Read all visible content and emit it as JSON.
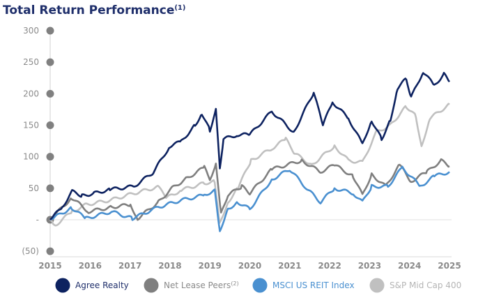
{
  "chart_data": {
    "type": "line",
    "title": "Total Return Performance",
    "title_footnote": "(1)",
    "xlabel": "",
    "ylabel": "",
    "xlim": [
      2015,
      2025
    ],
    "ylim": [
      -50,
      300
    ],
    "x_ticks": [
      "2015",
      "2016",
      "2017",
      "2018",
      "2019",
      "2020",
      "2021",
      "2022",
      "2023",
      "2024",
      "2025"
    ],
    "y_ticks": [
      {
        "value": 300,
        "label": "300"
      },
      {
        "value": 250,
        "label": "250"
      },
      {
        "value": 200,
        "label": "200"
      },
      {
        "value": 150,
        "label": "150"
      },
      {
        "value": 100,
        "label": "100"
      },
      {
        "value": 50,
        "label": "50"
      },
      {
        "value": 0,
        "label": "-"
      },
      {
        "value": -50,
        "label": "(50)"
      }
    ],
    "grid": false,
    "legend_placement": "bottom",
    "series": [
      {
        "name": "S&P Mid Cap 400",
        "color": "#c0c0c0",
        "x": [
          2015,
          2015.14,
          2015.55,
          2015.9,
          2016.5,
          2017.1,
          2017.7,
          2017.93,
          2018.28,
          2018.86,
          2019.12,
          2019.24,
          2019.45,
          2019.7,
          2020.03,
          2020.55,
          2020.9,
          2021.13,
          2021.55,
          2022.12,
          2022.47,
          2022.82,
          2023.17,
          2023.52,
          2023.92,
          2024.16,
          2024.3,
          2024.51,
          2025
        ],
        "y": [
          0,
          -8,
          13,
          24,
          31,
          42,
          52,
          35,
          47,
          58,
          61,
          -6,
          28,
          50,
          94,
          113,
          128,
          105,
          87,
          117,
          94,
          91,
          139,
          150,
          180,
          164,
          117,
          161,
          183
        ]
      },
      {
        "name": "Net Lease Peers",
        "footnote": "(2)",
        "color": "#7f7f7f",
        "x": [
          2015,
          2015.54,
          2015.96,
          2016.54,
          2017.01,
          2017.19,
          2017.71,
          2018.05,
          2018.4,
          2018.86,
          2019.0,
          2019.15,
          2019.28,
          2019.45,
          2019.8,
          2020.0,
          2020.55,
          2021.3,
          2021.77,
          2022.12,
          2022.59,
          2022.82,
          2023.05,
          2023.4,
          2023.75,
          2024.04,
          2024.44,
          2024.79,
          2025
        ],
        "y": [
          0,
          35,
          13,
          20,
          24,
          2,
          28,
          50,
          65,
          83,
          65,
          87,
          9,
          39,
          53,
          42,
          80,
          94,
          76,
          87,
          69,
          39,
          72,
          53,
          87,
          61,
          76,
          94,
          85
        ]
      },
      {
        "name": "MSCI US REIT Index",
        "color": "#4a90d0",
        "x": [
          2015,
          2015.54,
          2015.89,
          2016.54,
          2017.06,
          2017.71,
          2018.28,
          2018.86,
          2019.12,
          2019.25,
          2019.45,
          2019.7,
          2020.0,
          2020.55,
          2021.0,
          2021.42,
          2021.77,
          2022.12,
          2022.59,
          2022.82,
          2023.05,
          2023.46,
          2023.82,
          2024.27,
          2024.62,
          2025
        ],
        "y": [
          0,
          19,
          2,
          13,
          2,
          20,
          31,
          39,
          47,
          -17,
          17,
          28,
          17,
          64,
          80,
          50,
          28,
          50,
          42,
          28,
          53,
          53,
          83,
          53,
          69,
          76
        ]
      },
      {
        "name": "Agree Realty",
        "color": "#0d2260",
        "x": [
          2015,
          2015.3,
          2015.55,
          2015.8,
          2016.1,
          2016.5,
          2017.1,
          2017.58,
          2018.0,
          2018.28,
          2018.63,
          2018.8,
          2019.0,
          2019.15,
          2019.25,
          2019.34,
          2019.7,
          2020.0,
          2020.55,
          2021.1,
          2021.6,
          2021.83,
          2022.07,
          2022.47,
          2022.82,
          2023.05,
          2023.3,
          2023.52,
          2023.7,
          2023.92,
          2024.04,
          2024.34,
          2024.62,
          2024.86,
          2025
        ],
        "y": [
          0,
          20,
          45,
          38,
          42,
          48,
          53,
          75,
          117,
          124,
          150,
          169,
          142,
          174,
          83,
          128,
          135,
          135,
          172,
          139,
          202,
          150,
          187,
          161,
          120,
          158,
          128,
          158,
          209,
          224,
          194,
          235,
          213,
          231,
          219
        ]
      }
    ]
  },
  "legend": [
    {
      "label": "Agree Realty",
      "sup": "",
      "color": "#0d2260",
      "text_color": "#1f2f6b"
    },
    {
      "label": "Net Lease Peers",
      "sup": "(2)",
      "color": "#7f7f7f",
      "text_color": "#8a8a8a"
    },
    {
      "label": "MSCI US REIT Index",
      "sup": "",
      "color": "#4a90d0",
      "text_color": "#4a90d0"
    },
    {
      "label": "S&P Mid Cap 400",
      "sup": "",
      "color": "#c0c0c0",
      "text_color": "#b5b5b5"
    }
  ]
}
